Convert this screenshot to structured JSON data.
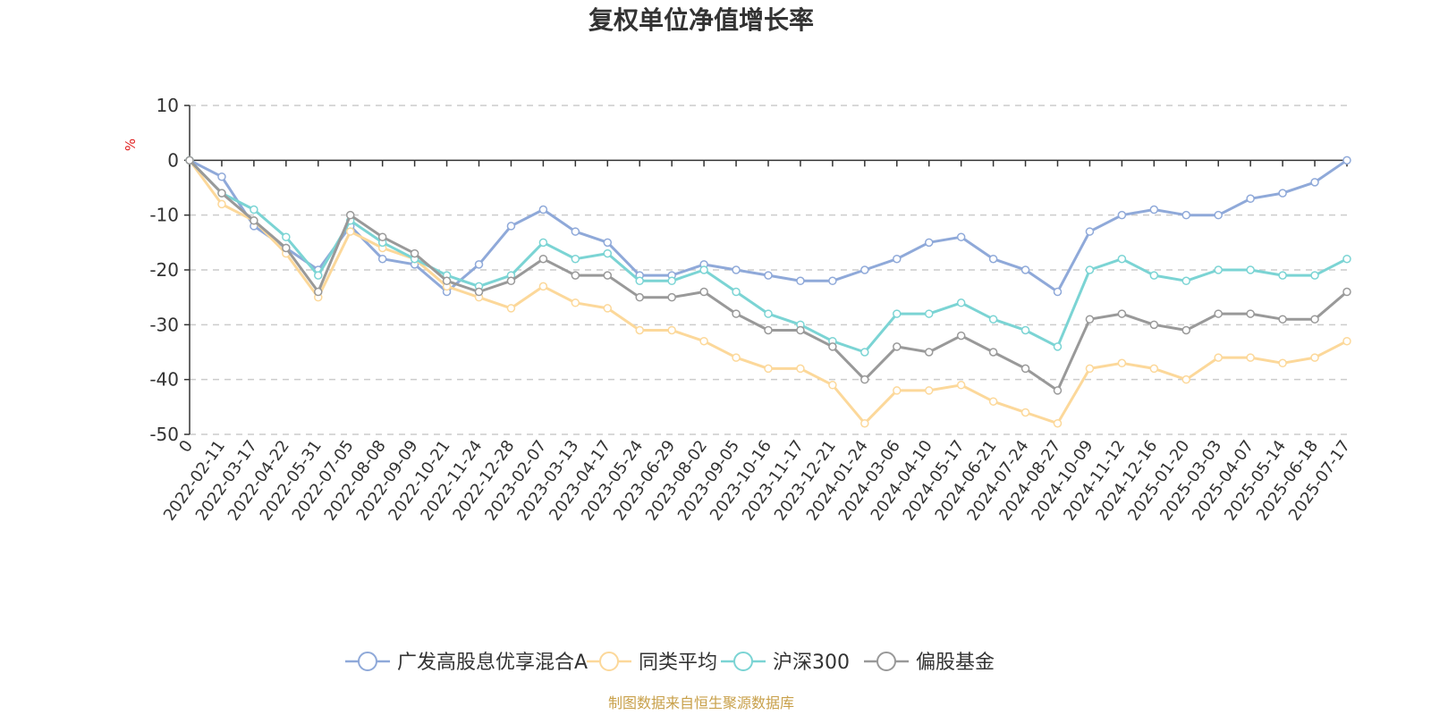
{
  "chart_data": {
    "type": "line",
    "title": "复权单位净值增长率",
    "y_unit": "%",
    "ylim": [
      -50,
      10
    ],
    "y_ticks": [
      10,
      0,
      -10,
      -20,
      -30,
      -40,
      -50
    ],
    "grid": "horizontal-dashed",
    "legend_position": "bottom",
    "x_tick_labels": [
      "0",
      "2022-02-11",
      "2022-03-17",
      "2022-04-22",
      "2022-05-31",
      "2022-07-05",
      "2022-08-08",
      "2022-09-09",
      "2022-10-21",
      "2022-11-24",
      "2022-12-28",
      "2023-02-07",
      "2023-03-13",
      "2023-04-17",
      "2023-05-24",
      "2023-06-29",
      "2023-08-02",
      "2023-09-05",
      "2023-10-16",
      "2023-11-17",
      "2023-12-21",
      "2024-01-24",
      "2024-03-06",
      "2024-04-10",
      "2024-05-17",
      "2024-06-21",
      "2024-07-24",
      "2024-08-27",
      "2024-10-09",
      "2024-11-12",
      "2024-12-16",
      "2025-01-20",
      "2025-03-03",
      "2025-04-07",
      "2025-05-14",
      "2025-06-18",
      "2025-07-17"
    ],
    "series": [
      {
        "name": "广发高股息优享混合A",
        "color": "#8fa9d9",
        "values": [
          0,
          -3,
          -12,
          -16,
          -20,
          -12,
          -18,
          -19,
          -24,
          -19,
          -12,
          -9,
          -13,
          -15,
          -21,
          -21,
          -19,
          -20,
          -21,
          -22,
          -22,
          -20,
          -18,
          -15,
          -14,
          -18,
          -20,
          -24,
          -13,
          -10,
          -9,
          -10,
          -10,
          -7,
          -6,
          -4,
          0
        ]
      },
      {
        "name": "同类平均",
        "color": "#fcd89a",
        "values": [
          0,
          -8,
          -11,
          -17,
          -25,
          -13,
          -16,
          -18,
          -23,
          -25,
          -27,
          -23,
          -26,
          -27,
          -31,
          -31,
          -33,
          -36,
          -38,
          -38,
          -41,
          -48,
          -42,
          -42,
          -41,
          -44,
          -46,
          -48,
          -38,
          -37,
          -38,
          -40,
          -36,
          -36,
          -37,
          -36,
          -33
        ]
      },
      {
        "name": "沪深300",
        "color": "#7bd4d4",
        "values": [
          0,
          -6,
          -9,
          -14,
          -21,
          -11,
          -15,
          -18,
          -21,
          -23,
          -21,
          -15,
          -18,
          -17,
          -22,
          -22,
          -20,
          -24,
          -28,
          -30,
          -33,
          -35,
          -28,
          -28,
          -26,
          -29,
          -31,
          -34,
          -20,
          -18,
          -21,
          -22,
          -20,
          -20,
          -21,
          -21,
          -18
        ]
      },
      {
        "name": "偏股基金",
        "color": "#999999",
        "values": [
          0,
          -6,
          -11,
          -16,
          -24,
          -10,
          -14,
          -17,
          -22,
          -24,
          -22,
          -18,
          -21,
          -21,
          -25,
          -25,
          -24,
          -28,
          -31,
          -31,
          -34,
          -40,
          -34,
          -35,
          -32,
          -35,
          -38,
          -42,
          -29,
          -28,
          -30,
          -31,
          -28,
          -28,
          -29,
          -29,
          -24
        ]
      }
    ]
  },
  "source": {
    "text": "制图数据来自恒生聚源数据库",
    "color": "#c8a04a"
  },
  "colors": {
    "axis": "#333333",
    "grid": "#cccccc",
    "unit": "#e02020"
  }
}
